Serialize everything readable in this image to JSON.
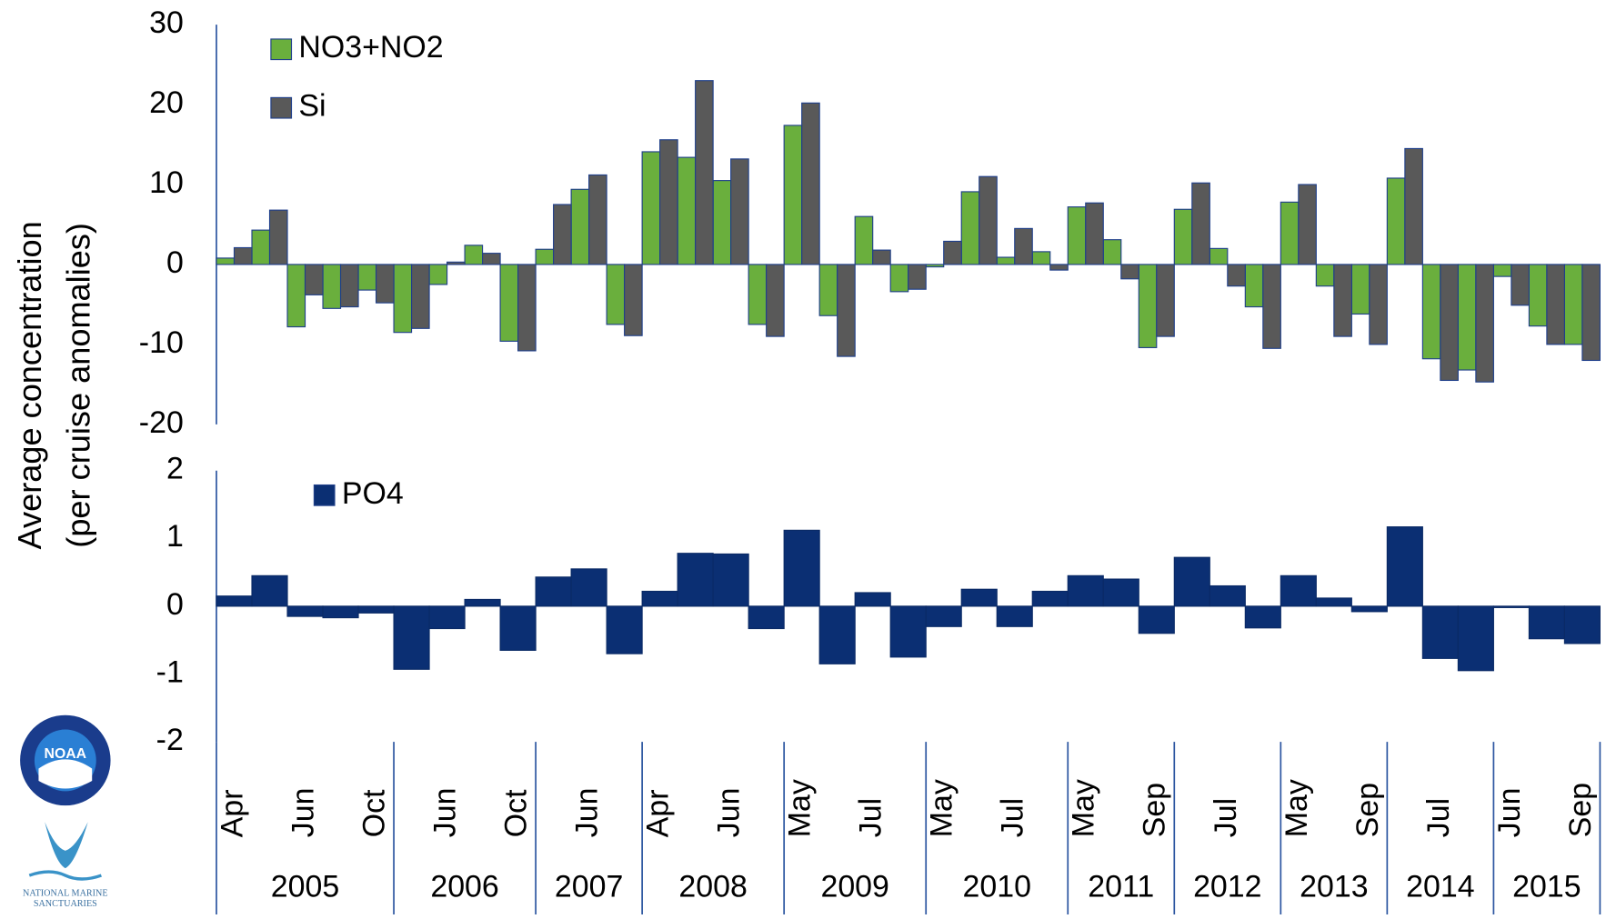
{
  "chart_data": [
    {
      "type": "bar",
      "ylim": [
        -20,
        30
      ],
      "yticks": [
        -20,
        -10,
        0,
        10,
        20,
        30
      ],
      "series": [
        {
          "name": "NO3+NO2",
          "color": "#6aaf3d",
          "values": [
            0.8,
            4.3,
            -7.8,
            -5.5,
            -3.2,
            -8.5,
            -2.5,
            2.4,
            -9.6,
            1.9,
            9.4,
            -7.5,
            14.1,
            13.4,
            10.5,
            -7.5,
            17.4,
            -6.4,
            6,
            -3.4,
            -0.3,
            9.1,
            0.9,
            1.6,
            7.2,
            3.1,
            -10.4,
            6.9,
            2,
            -5.3,
            7.8,
            -2.7,
            -6.2,
            10.8,
            -11.8,
            -13.2,
            -1.5,
            -7.7,
            -10
          ]
        },
        {
          "name": "Si",
          "color": "#595959",
          "values": [
            2.1,
            6.8,
            -3.8,
            -5.3,
            -4.8,
            -8,
            0.3,
            1.4,
            -10.8,
            7.5,
            11.2,
            -8.9,
            15.6,
            23,
            13.2,
            -9,
            20.2,
            -11.5,
            1.8,
            -3.1,
            2.9,
            11,
            4.5,
            -0.7,
            7.7,
            -1.8,
            -9,
            10.2,
            -2.7,
            -10.5,
            10,
            -9,
            -10,
            14.5,
            -14.5,
            -14.7,
            -5.1,
            -10,
            -12
          ]
        }
      ]
    },
    {
      "type": "bar",
      "ylabel": [
        "Average concentration",
        "(per cruise anomalies)"
      ],
      "ylim": [
        -2,
        2
      ],
      "yticks": [
        -2,
        -1,
        0,
        1,
        2
      ],
      "categories": [
        "Apr",
        null,
        "Jun",
        null,
        "Oct",
        null,
        "Jun",
        null,
        "Oct",
        null,
        "Jun",
        null,
        "Apr",
        null,
        "Jun",
        null,
        "May",
        null,
        "Jul",
        null,
        "May",
        null,
        "Jul",
        null,
        "May",
        null,
        "Sep",
        null,
        "Jul",
        null,
        "May",
        null,
        "Sep",
        null,
        "Jul",
        null,
        "Jun",
        null,
        "Sep"
      ],
      "groups": [
        {
          "name": "2005",
          "span": 5
        },
        {
          "name": "2006",
          "span": 4
        },
        {
          "name": "2007",
          "span": 3
        },
        {
          "name": "2008",
          "span": 4
        },
        {
          "name": "2009",
          "span": 4
        },
        {
          "name": "2010",
          "span": 4
        },
        {
          "name": "2011",
          "span": 3
        },
        {
          "name": "2012",
          "span": 3
        },
        {
          "name": "2013",
          "span": 3
        },
        {
          "name": "2014",
          "span": 3
        },
        {
          "name": "2015",
          "span": 3
        }
      ],
      "series": [
        {
          "name": "PO4",
          "color": "#0b2f73",
          "values": [
            0.15,
            0.45,
            -0.15,
            -0.17,
            -0.1,
            -0.93,
            -0.33,
            0.1,
            -0.65,
            0.43,
            0.55,
            -0.7,
            0.22,
            0.78,
            0.77,
            -0.33,
            1.12,
            -0.85,
            0.2,
            -0.75,
            -0.3,
            0.25,
            -0.3,
            0.22,
            0.45,
            0.4,
            -0.4,
            0.72,
            0.3,
            -0.32,
            0.45,
            0.12,
            -0.08,
            1.17,
            -0.77,
            -0.95,
            -0.02,
            -0.48,
            -0.55
          ]
        }
      ]
    }
  ],
  "logos": {
    "noaa": "NOAA",
    "sanctuaries": [
      "NATIONAL MARINE",
      "SANCTUARIES"
    ]
  }
}
